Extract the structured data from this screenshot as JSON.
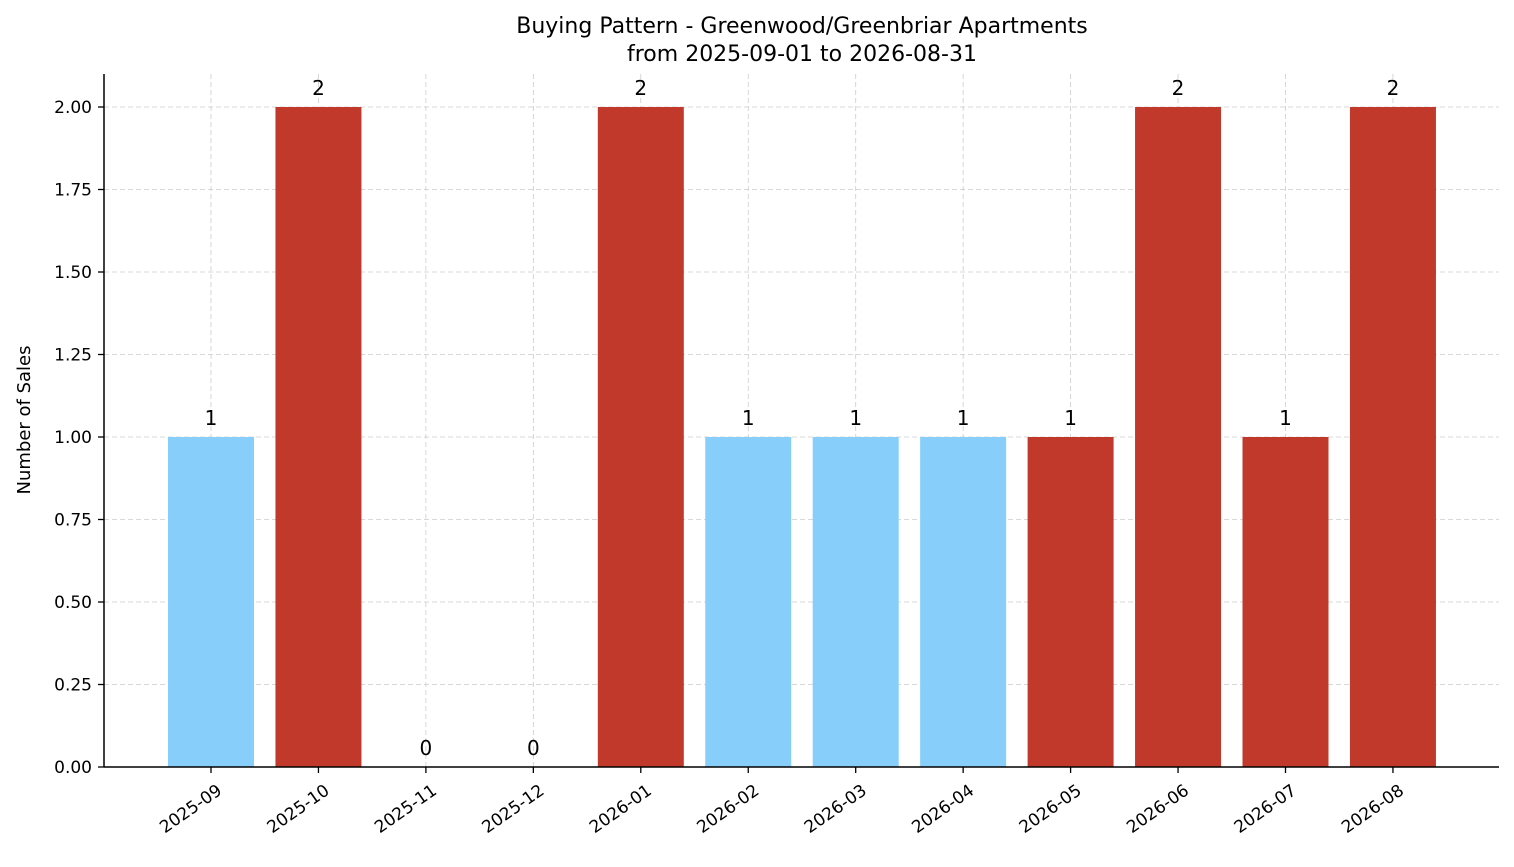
{
  "chart_data": {
    "type": "bar",
    "title": "Buying Pattern - Greenwood/Greenbriar Apartments",
    "subtitle": "from 2025-09-01 to 2026-08-31",
    "xlabel": "",
    "ylabel": "Number of Sales",
    "ylim": [
      0,
      2.1
    ],
    "yticks": [
      "0.00",
      "0.25",
      "0.50",
      "0.75",
      "1.00",
      "1.25",
      "1.50",
      "1.75",
      "2.00"
    ],
    "grid": true,
    "categories": [
      "2025-09",
      "2025-10",
      "2025-11",
      "2025-12",
      "2026-01",
      "2026-02",
      "2026-03",
      "2026-04",
      "2026-05",
      "2026-06",
      "2026-07",
      "2026-08"
    ],
    "values": [
      1,
      2,
      0,
      0,
      2,
      1,
      1,
      1,
      1,
      2,
      1,
      2
    ],
    "data_labels": [
      "1",
      "2",
      "0",
      "0",
      "2",
      "1",
      "1",
      "1",
      "1",
      "2",
      "1",
      "2"
    ],
    "bar_colors": [
      "#87cefa",
      "#c0392b",
      "#87cefa",
      "#87cefa",
      "#c0392b",
      "#87cefa",
      "#87cefa",
      "#87cefa",
      "#c0392b",
      "#c0392b",
      "#c0392b",
      "#c0392b"
    ]
  }
}
